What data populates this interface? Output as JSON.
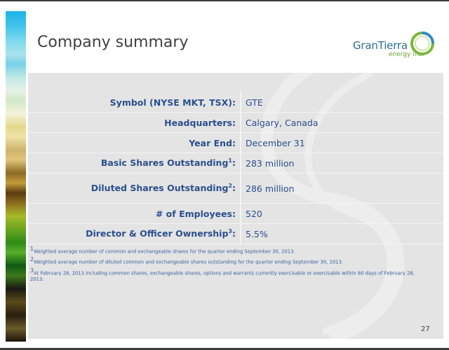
{
  "slide": {
    "title": "Company summary",
    "page_number": "27"
  },
  "logo": {
    "name_part1": "Gran",
    "name_part2": "Tierra",
    "subtitle": "energy inc.",
    "colors": {
      "ring": "#7ab83a",
      "ring_blue": "#2e8bc0",
      "text": "#2e6f8e"
    }
  },
  "summary": {
    "rows": [
      {
        "label": "Symbol (NYSE MKT, TSX):",
        "sup": "",
        "value": "GTE"
      },
      {
        "label": "Headquarters:",
        "sup": "",
        "value": "Calgary, Canada"
      },
      {
        "label": "Year End:",
        "sup": "",
        "value": "December 31"
      },
      {
        "label": "Basic Shares Outstanding",
        "sup": "1",
        "suffix": ":",
        "value": "283 million"
      },
      {
        "label": "Diluted Shares Outstanding",
        "sup": "2",
        "suffix": ":",
        "value": "286 million"
      },
      {
        "label": "# of Employees:",
        "sup": "",
        "value": "520"
      },
      {
        "label": "Director & Officer Ownership",
        "sup": "3",
        "suffix": ":",
        "value": "5.5%"
      }
    ]
  },
  "footnotes": [
    {
      "marker": "1",
      "text": "Weighted average number of common and exchangeable shares for the quarter ending September 30, 2013."
    },
    {
      "marker": "2",
      "text": "Weighted average number of diluted common and exchangeable shares outstanding for the quarter ending September 30, 2013."
    },
    {
      "marker": "3",
      "text": "At February 28, 2013 including common shares, exchangeable shares, options and warrants currently exercisable or exercisable within 60 days of February 28, 2013."
    }
  ]
}
